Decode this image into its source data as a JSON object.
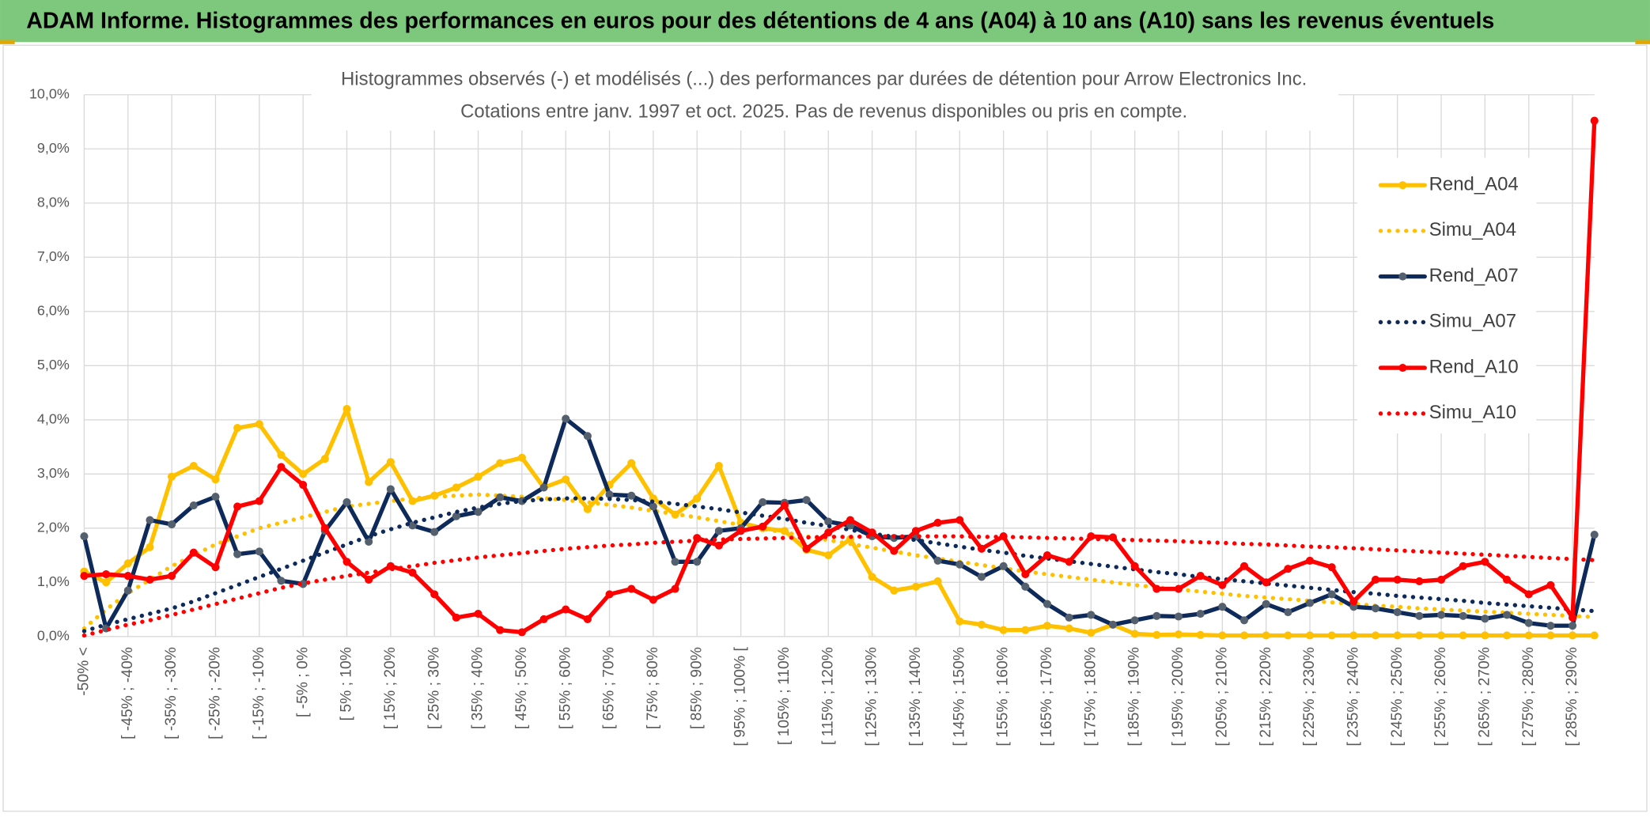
{
  "header": {
    "title": "ADAM Informe. Histogrammes des performances en euros pour des détentions de 4 ans (A04) à 10 ans (A10) sans les revenus éventuels"
  },
  "chart_data": {
    "type": "line",
    "title": "Histogrammes observés (-) et modélisés (...) des performances par durées de détention pour Arrow Electronics Inc.",
    "subtitle": "Cotations entre janv. 1997 et oct. 2025. Pas de revenus disponibles ou pris en compte.",
    "categories": [
      "-50% <",
      null,
      "[ -45% ; -40%",
      null,
      "[ -35% ; -30%",
      null,
      "[ -25% ; -20%",
      null,
      "[ -15% ; -10%",
      null,
      "[ -5% ; 0%",
      null,
      "[ 5% ; 10%",
      null,
      "[ 15% ; 20%",
      null,
      "[ 25% ; 30%",
      null,
      "[ 35% ; 40%",
      null,
      "[ 45% ; 50%",
      null,
      "[ 55% ; 60%",
      null,
      "[ 65% ; 70%",
      null,
      "[ 75% ; 80%",
      null,
      "[ 85% ; 90%",
      null,
      "[ 95% ; 100% [",
      null,
      "[ 105% ; 110%",
      null,
      "[ 115% ; 120%",
      null,
      "[ 125% ; 130%",
      null,
      "[ 135% ; 140%",
      null,
      "[ 145% ; 150%",
      null,
      "[ 155% ; 160%",
      null,
      "[ 165% ; 170%",
      null,
      "[ 175% ; 180%",
      null,
      "[ 185% ; 190%",
      null,
      "[ 195% ; 200%",
      null,
      "[ 205% ; 210%",
      null,
      "[ 215% ; 220%",
      null,
      "[ 225% ; 230%",
      null,
      "[ 235% ; 240%",
      null,
      "[ 245% ; 250%",
      null,
      "[ 255% ; 260%",
      null,
      "[ 265% ; 270%",
      null,
      "[ 275% ; 280%",
      null,
      "[ 285% ; 290%",
      null
    ],
    "ylim": [
      0,
      10
    ],
    "yticks": [
      {
        "value": 0,
        "label": "0,0%"
      },
      {
        "value": 1,
        "label": "1,0%"
      },
      {
        "value": 2,
        "label": "2,0%"
      },
      {
        "value": 3,
        "label": "3,0%"
      },
      {
        "value": 4,
        "label": "4,0%"
      },
      {
        "value": 5,
        "label": "5,0%"
      },
      {
        "value": 6,
        "label": "6,0%"
      },
      {
        "value": 7,
        "label": "7,0%"
      },
      {
        "value": 8,
        "label": "8,0%"
      },
      {
        "value": 9,
        "label": "9,0%"
      },
      {
        "value": 10,
        "label": "10,0%"
      }
    ],
    "grid": true,
    "legend": "right",
    "series": [
      {
        "name": "Rend_A04",
        "color": "#ffc000",
        "style": "solid",
        "values": [
          1.2,
          1.0,
          1.35,
          1.65,
          2.95,
          3.15,
          2.9,
          3.85,
          3.92,
          3.35,
          3.0,
          3.28,
          4.2,
          2.85,
          3.22,
          2.5,
          2.6,
          2.75,
          2.95,
          3.2,
          3.3,
          2.75,
          2.9,
          2.35,
          2.8,
          3.2,
          2.55,
          2.25,
          2.55,
          3.15,
          2.1,
          2.0,
          1.95,
          1.6,
          1.5,
          1.8,
          1.1,
          0.85,
          0.92,
          1.02,
          0.28,
          0.22,
          0.12,
          0.12,
          0.2,
          0.15,
          0.07,
          0.22,
          0.05,
          0.03,
          0.04,
          0.03,
          0.02,
          0.02,
          0.02,
          0.02,
          0.02,
          0.02,
          0.02,
          0.02,
          0.02,
          0.02,
          0.02,
          0.02,
          0.02,
          0.02,
          0.02,
          0.02,
          0.02,
          0.02
        ]
      },
      {
        "name": "Simu_A04",
        "color": "#ffc000",
        "style": "dotted",
        "values": [
          0.15,
          0.5,
          0.8,
          1.05,
          1.3,
          1.5,
          1.7,
          1.85,
          2.0,
          2.1,
          2.2,
          2.3,
          2.4,
          2.45,
          2.5,
          2.55,
          2.58,
          2.6,
          2.62,
          2.6,
          2.58,
          2.55,
          2.52,
          2.48,
          2.43,
          2.38,
          2.32,
          2.26,
          2.2,
          2.13,
          2.06,
          1.99,
          1.92,
          1.85,
          1.78,
          1.71,
          1.64,
          1.57,
          1.5,
          1.44,
          1.38,
          1.32,
          1.26,
          1.2,
          1.15,
          1.1,
          1.05,
          1.0,
          0.95,
          0.91,
          0.87,
          0.83,
          0.79,
          0.75,
          0.72,
          0.69,
          0.66,
          0.63,
          0.6,
          0.57,
          0.55,
          0.52,
          0.5,
          0.48,
          0.46,
          0.44,
          0.42,
          0.4,
          0.38,
          0.36
        ]
      },
      {
        "name": "Rend_A07",
        "color": "#0e2a5a",
        "style": "solid",
        "values": [
          1.85,
          0.15,
          0.85,
          2.15,
          2.07,
          2.42,
          2.58,
          1.52,
          1.57,
          1.03,
          0.97,
          1.95,
          2.48,
          1.75,
          2.72,
          2.05,
          1.93,
          2.22,
          2.3,
          2.57,
          2.5,
          2.75,
          4.02,
          3.7,
          2.62,
          2.6,
          2.4,
          1.38,
          1.38,
          1.95,
          2.0,
          2.48,
          2.47,
          2.52,
          2.12,
          2.05,
          1.85,
          1.82,
          1.85,
          1.4,
          1.33,
          1.1,
          1.3,
          0.92,
          0.6,
          0.35,
          0.4,
          0.22,
          0.3,
          0.38,
          0.37,
          0.42,
          0.55,
          0.3,
          0.6,
          0.45,
          0.62,
          0.78,
          0.55,
          0.52,
          0.45,
          0.38,
          0.4,
          0.38,
          0.33,
          0.4,
          0.25,
          0.2,
          0.2,
          1.88
        ]
      },
      {
        "name": "Simu_A07",
        "color": "#0e2a5a",
        "style": "dotted",
        "values": [
          0.1,
          0.22,
          0.32,
          0.42,
          0.52,
          0.65,
          0.8,
          0.95,
          1.1,
          1.25,
          1.4,
          1.55,
          1.7,
          1.85,
          1.98,
          2.1,
          2.2,
          2.3,
          2.38,
          2.45,
          2.5,
          2.53,
          2.55,
          2.55,
          2.54,
          2.52,
          2.49,
          2.45,
          2.4,
          2.35,
          2.29,
          2.23,
          2.17,
          2.1,
          2.04,
          1.97,
          1.9,
          1.84,
          1.78,
          1.72,
          1.66,
          1.6,
          1.55,
          1.49,
          1.44,
          1.39,
          1.34,
          1.29,
          1.24,
          1.19,
          1.15,
          1.1,
          1.06,
          1.02,
          0.98,
          0.94,
          0.9,
          0.86,
          0.82,
          0.79,
          0.75,
          0.72,
          0.69,
          0.66,
          0.62,
          0.59,
          0.56,
          0.53,
          0.5,
          0.47
        ]
      },
      {
        "name": "Rend_A10",
        "color": "#ff0000",
        "style": "solid",
        "values": [
          1.12,
          1.15,
          1.12,
          1.05,
          1.12,
          1.55,
          1.28,
          2.4,
          2.5,
          3.13,
          2.8,
          2.0,
          1.38,
          1.05,
          1.3,
          1.18,
          0.78,
          0.35,
          0.42,
          0.12,
          0.08,
          0.32,
          0.5,
          0.32,
          0.78,
          0.88,
          0.68,
          0.88,
          1.82,
          1.68,
          1.95,
          2.03,
          2.42,
          1.62,
          1.92,
          2.15,
          1.92,
          1.58,
          1.95,
          2.1,
          2.15,
          1.62,
          1.85,
          1.15,
          1.5,
          1.38,
          1.85,
          1.83,
          1.3,
          0.88,
          0.88,
          1.12,
          0.95,
          1.3,
          1.0,
          1.25,
          1.4,
          1.28,
          0.65,
          1.05,
          1.05,
          1.02,
          1.05,
          1.3,
          1.38,
          1.05,
          0.78,
          0.95,
          0.35,
          9.52
        ]
      },
      {
        "name": "Simu_A10",
        "color": "#ff0000",
        "style": "dotted",
        "values": [
          0.02,
          0.12,
          0.22,
          0.3,
          0.4,
          0.5,
          0.6,
          0.7,
          0.8,
          0.9,
          0.98,
          1.05,
          1.12,
          1.18,
          1.24,
          1.3,
          1.36,
          1.41,
          1.46,
          1.5,
          1.54,
          1.58,
          1.62,
          1.65,
          1.68,
          1.7,
          1.73,
          1.75,
          1.77,
          1.79,
          1.8,
          1.81,
          1.82,
          1.83,
          1.84,
          1.84,
          1.85,
          1.85,
          1.85,
          1.85,
          1.85,
          1.84,
          1.84,
          1.83,
          1.82,
          1.81,
          1.8,
          1.79,
          1.78,
          1.77,
          1.76,
          1.74,
          1.73,
          1.71,
          1.7,
          1.68,
          1.66,
          1.65,
          1.63,
          1.61,
          1.59,
          1.57,
          1.55,
          1.53,
          1.51,
          1.49,
          1.47,
          1.45,
          1.43,
          1.41
        ]
      }
    ]
  }
}
